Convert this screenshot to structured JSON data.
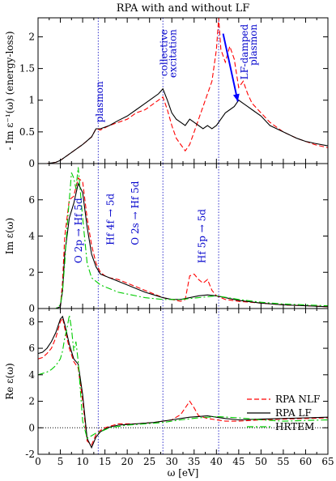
{
  "chart_data": {
    "type": "line",
    "title": "RPA with and without LF",
    "xlabel": "ω [eV]",
    "xlim": [
      0,
      65
    ],
    "xticks": [
      "0",
      "5",
      "10",
      "15",
      "20",
      "25",
      "30",
      "35",
      "40",
      "45",
      "50",
      "55",
      "60",
      "65"
    ],
    "vlines": [
      13.5,
      28,
      40.5
    ],
    "legend": {
      "placement": "bottom-right of lower panel",
      "entries": [
        {
          "label": "RPA NLF",
          "color": "#ff0000",
          "dash": "6,3"
        },
        {
          "label": "RPA LF",
          "color": "#000000",
          "dash": ""
        },
        {
          "label": "HRTEM",
          "color": "#00cc00",
          "dash": "8,3,2,3"
        }
      ]
    },
    "panels": [
      {
        "ylabel": "- Im ε⁻¹(ω) (energy-loss)",
        "ylim": [
          0,
          2.3
        ],
        "yticks": [
          {
            "v": 0,
            "t": "0"
          },
          {
            "v": 0.5,
            "t": "0.5"
          },
          {
            "v": 1,
            "t": "1"
          },
          {
            "v": 1.5,
            "t": "1.5"
          },
          {
            "v": 2,
            "t": "2"
          }
        ],
        "series": [
          {
            "name": "RPA NLF",
            "x": [
              0,
              2,
              4,
              5,
              6,
              8,
              10,
              12,
              13,
              14,
              16,
              18,
              20,
              22,
              24,
              26,
              27,
              28,
              29,
              30,
              31,
              32,
              33,
              34,
              35,
              36,
              37,
              38,
              39,
              40,
              40.5,
              41,
              42,
              43,
              44,
              45,
              46,
              47,
              48,
              50,
              52,
              55,
              58,
              60,
              62,
              65
            ],
            "y": [
              0,
              0,
              0.02,
              0.05,
              0.1,
              0.2,
              0.3,
              0.42,
              0.55,
              0.53,
              0.6,
              0.65,
              0.7,
              0.8,
              0.85,
              0.95,
              1.0,
              1.05,
              0.85,
              0.6,
              0.4,
              0.3,
              0.2,
              0.3,
              0.5,
              0.7,
              0.9,
              1.1,
              1.3,
              1.8,
              2.3,
              1.8,
              1.6,
              1.85,
              1.65,
              1.2,
              1.3,
              1.1,
              0.95,
              0.8,
              0.65,
              0.5,
              0.4,
              0.35,
              0.3,
              0.25
            ]
          },
          {
            "name": "RPA LF",
            "x": [
              0,
              2,
              4,
              5,
              6,
              8,
              10,
              12,
              13,
              14,
              16,
              18,
              20,
              22,
              24,
              26,
              27,
              28,
              29,
              30,
              31,
              32,
              33,
              34,
              35,
              36,
              37,
              38,
              39,
              40,
              41,
              42,
              43,
              44,
              45,
              46,
              47,
              48,
              50,
              52,
              55,
              58,
              60,
              62,
              65
            ],
            "y": [
              0,
              0,
              0.02,
              0.05,
              0.1,
              0.2,
              0.3,
              0.42,
              0.55,
              0.55,
              0.6,
              0.68,
              0.75,
              0.85,
              0.95,
              1.05,
              1.1,
              1.18,
              1.0,
              0.8,
              0.7,
              0.65,
              0.6,
              0.7,
              0.65,
              0.6,
              0.55,
              0.6,
              0.55,
              0.6,
              0.7,
              0.8,
              0.85,
              0.9,
              1.0,
              0.95,
              0.9,
              0.85,
              0.75,
              0.6,
              0.5,
              0.4,
              0.35,
              0.32,
              0.28
            ]
          }
        ],
        "annotations": [
          {
            "text": "plasmon",
            "x": 14.5,
            "y": 1.3,
            "rotate": -90
          },
          {
            "text": "collective",
            "x": 29,
            "y": 2.12,
            "rotate": -90
          },
          {
            "text": "excitation",
            "x": 31,
            "y": 2.12,
            "rotate": -90
          },
          {
            "text": "LF-damped",
            "x": 47,
            "y": 2.2,
            "rotate": -90
          },
          {
            "text": "plasmon",
            "x": 49,
            "y": 2.2,
            "rotate": -90
          }
        ],
        "arrow": {
          "from": [
            41.5,
            2.05
          ],
          "to": [
            44.8,
            0.98
          ]
        }
      },
      {
        "ylabel": "Im ε(ω)",
        "ylim": [
          0,
          8
        ],
        "yticks": [
          {
            "v": 0,
            "t": "0"
          },
          {
            "v": 2,
            "t": "2"
          },
          {
            "v": 4,
            "t": "4"
          },
          {
            "v": 6,
            "t": "6"
          }
        ],
        "series": [
          {
            "name": "RPA NLF",
            "x": [
              0,
              3,
              4,
              5,
              5.5,
              6,
              7,
              8,
              9,
              10,
              11,
              12,
              13,
              14,
              15,
              16,
              18,
              20,
              22,
              24,
              26,
              28,
              30,
              32,
              33,
              34,
              35,
              36,
              37,
              38,
              39,
              40,
              42,
              45,
              50,
              55,
              60,
              65
            ],
            "y": [
              0,
              0,
              0,
              0.1,
              1.5,
              4.0,
              6.0,
              6.2,
              7.2,
              7.0,
              5.0,
              3.5,
              2.5,
              2.0,
              1.8,
              1.7,
              1.6,
              1.4,
              1.2,
              1.0,
              0.8,
              0.6,
              0.5,
              0.4,
              0.5,
              1.8,
              1.9,
              1.6,
              1.4,
              1.6,
              1.0,
              0.7,
              0.5,
              0.4,
              0.3,
              0.2,
              0.15,
              0.1
            ]
          },
          {
            "name": "RPA LF",
            "x": [
              0,
              3,
              4,
              5,
              5.5,
              6,
              7,
              8,
              9,
              10,
              11,
              12,
              13,
              14,
              15,
              16,
              18,
              20,
              22,
              24,
              26,
              28,
              30,
              32,
              34,
              36,
              38,
              40,
              42,
              45,
              50,
              55,
              60,
              65
            ],
            "y": [
              0,
              0,
              0,
              0.1,
              1.0,
              3.0,
              5.0,
              5.8,
              6.9,
              6.4,
              4.5,
              3.0,
              2.3,
              1.9,
              1.8,
              1.7,
              1.5,
              1.3,
              1.1,
              0.9,
              0.75,
              0.6,
              0.5,
              0.5,
              0.6,
              0.7,
              0.75,
              0.7,
              0.6,
              0.45,
              0.3,
              0.2,
              0.15,
              0.1
            ]
          },
          {
            "name": "HRTEM",
            "x": [
              0,
              3,
              4,
              5,
              5.5,
              6,
              6.5,
              7,
              7.5,
              8,
              8.5,
              9,
              10,
              11,
              12,
              14,
              16,
              18,
              20,
              24,
              28,
              32,
              36,
              40,
              45,
              50,
              55,
              60,
              65
            ],
            "y": [
              0,
              0,
              0,
              0.2,
              1.0,
              2.5,
              4.5,
              6.0,
              7.5,
              7.2,
              6.6,
              7.8,
              5.0,
              2.5,
              1.7,
              1.3,
              1.1,
              0.9,
              0.8,
              0.6,
              0.5,
              0.5,
              0.6,
              0.7,
              0.5,
              0.35,
              0.25,
              0.2,
              0.15
            ]
          }
        ],
        "annotations": [
          {
            "text": "O 2p → Hf 5d",
            "x": 9.8,
            "y": 2.5,
            "rotate": -90,
            "anchor": "start"
          },
          {
            "text": "Hf 4f → 5d",
            "x": 17,
            "y": 3.5,
            "rotate": -90,
            "anchor": "start"
          },
          {
            "text": "O 2s → Hf 5d",
            "x": 22.5,
            "y": 3.5,
            "rotate": -90,
            "anchor": "start"
          },
          {
            "text": "Hf 5p → 5d",
            "x": 37.5,
            "y": 2.5,
            "rotate": -90,
            "anchor": "start"
          }
        ]
      },
      {
        "ylabel": "Re ε(ω)",
        "ylim": [
          -2,
          9
        ],
        "yticks": [
          {
            "v": -2,
            "t": "-2"
          },
          {
            "v": 0,
            "t": "0"
          },
          {
            "v": 2,
            "t": "2"
          },
          {
            "v": 4,
            "t": "4"
          },
          {
            "v": 6,
            "t": "6"
          },
          {
            "v": 8,
            "t": "8"
          }
        ],
        "zero_line": true,
        "series": [
          {
            "name": "RPA NLF",
            "x": [
              0,
              1,
              2,
              3,
              4,
              5,
              5.5,
              6,
              7,
              8,
              9,
              10,
              11,
              12,
              13,
              14,
              15,
              16,
              18,
              20,
              22,
              24,
              26,
              28,
              30,
              32,
              33,
              34,
              35,
              36,
              38,
              40,
              42,
              45,
              50,
              55,
              60,
              65
            ],
            "y": [
              5.2,
              5.3,
              5.6,
              6.0,
              6.8,
              8.0,
              8.3,
              7.5,
              6.0,
              5.0,
              4.5,
              2.0,
              -1.0,
              -1.3,
              -0.5,
              -0.2,
              0,
              0.1,
              0.3,
              0.3,
              0.3,
              0.35,
              0.4,
              0.5,
              0.6,
              1.0,
              1.5,
              2.0,
              1.5,
              0.9,
              0.7,
              0.6,
              0.5,
              0.5,
              0.6,
              0.65,
              0.7,
              0.75
            ]
          },
          {
            "name": "RPA LF",
            "x": [
              0,
              1,
              2,
              3,
              4,
              5,
              5.5,
              6,
              7,
              8,
              9,
              10,
              11,
              12,
              13,
              14,
              15,
              16,
              18,
              20,
              22,
              24,
              26,
              28,
              30,
              32,
              34,
              36,
              38,
              40,
              42,
              45,
              50,
              55,
              60,
              65
            ],
            "y": [
              5.6,
              5.7,
              6.0,
              6.5,
              7.2,
              8.2,
              8.4,
              7.8,
              6.3,
              5.2,
              4.8,
              2.5,
              -0.8,
              -1.5,
              -0.7,
              -0.3,
              -0.1,
              0.05,
              0.2,
              0.25,
              0.3,
              0.35,
              0.4,
              0.5,
              0.6,
              0.7,
              0.8,
              0.85,
              0.9,
              0.8,
              0.7,
              0.6,
              0.65,
              0.7,
              0.75,
              0.8
            ]
          },
          {
            "name": "HRTEM",
            "x": [
              0,
              1,
              2,
              3,
              4,
              5,
              5.5,
              6,
              6.5,
              7,
              7.5,
              8,
              8.5,
              9,
              10,
              11,
              12,
              13,
              14,
              16,
              18,
              20,
              24,
              28,
              32,
              36,
              40,
              45,
              50,
              55,
              60,
              65
            ],
            "y": [
              4.0,
              4.1,
              4.2,
              4.4,
              4.7,
              5.2,
              5.8,
              6.8,
              7.5,
              8.5,
              7.5,
              5.8,
              6.5,
              5.0,
              0.5,
              -0.8,
              -0.6,
              -0.4,
              -0.3,
              0,
              0.1,
              0.2,
              0.3,
              0.4,
              0.6,
              0.75,
              0.85,
              0.75,
              0.6,
              0.5,
              0.55,
              0.6
            ]
          }
        ]
      }
    ]
  }
}
